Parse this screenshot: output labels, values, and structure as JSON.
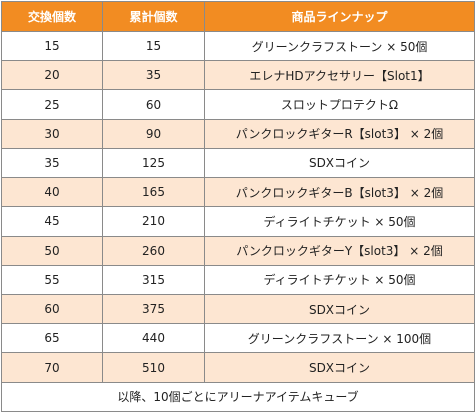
{
  "table": {
    "headers": [
      "交換個数",
      "累計個数",
      "商品ラインナップ"
    ],
    "rows": [
      {
        "qty": "15",
        "total": "15",
        "item": "グリーンクラフストーン × 50個"
      },
      {
        "qty": "20",
        "total": "35",
        "item": "エレナHDアクセサリー【Slot1】"
      },
      {
        "qty": "25",
        "total": "60",
        "item": "スロットプロテクトΩ"
      },
      {
        "qty": "30",
        "total": "90",
        "item": "パンクロックギターR【slot3】 × 2個"
      },
      {
        "qty": "35",
        "total": "125",
        "item": "SDXコイン"
      },
      {
        "qty": "40",
        "total": "165",
        "item": "パンクロックギターB【slot3】 × 2個"
      },
      {
        "qty": "45",
        "total": "210",
        "item": "ディライトチケット × 50個"
      },
      {
        "qty": "50",
        "total": "260",
        "item": "パンクロックギターY【slot3】 × 2個"
      },
      {
        "qty": "55",
        "total": "315",
        "item": "ディライトチケット × 50個"
      },
      {
        "qty": "60",
        "total": "375",
        "item": "SDXコイン"
      },
      {
        "qty": "65",
        "total": "440",
        "item": "グリーンクラフストーン × 100個"
      },
      {
        "qty": "70",
        "total": "510",
        "item": "SDXコイン"
      }
    ],
    "footer": "以降、10個ごとにアリーナアイテムキューブ"
  },
  "colors": {
    "header_bg": "#f28c22",
    "header_text": "#ffffff",
    "alt_row_bg": "#fde6d2",
    "border": "#8a8a8a"
  }
}
